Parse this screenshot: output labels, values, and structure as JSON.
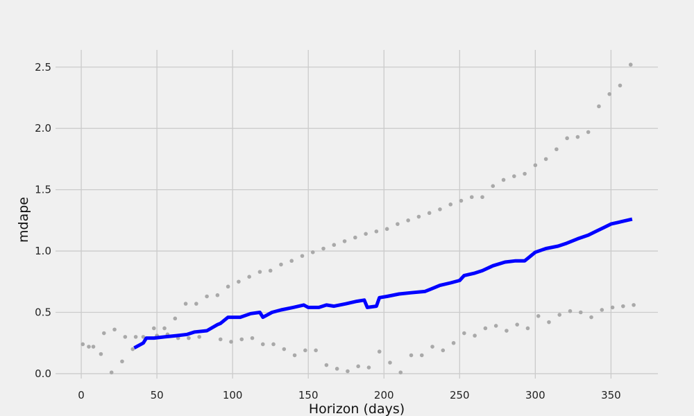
{
  "chart_data": {
    "type": "line",
    "xlabel": "Horizon (days)",
    "ylabel": "mdape",
    "xlim": [
      -17,
      381
    ],
    "ylim": [
      -0.04,
      2.64
    ],
    "x_ticks": [
      0,
      50,
      100,
      150,
      200,
      250,
      300,
      350
    ],
    "y_ticks": [
      0.0,
      0.5,
      1.0,
      1.5,
      2.0,
      2.5
    ],
    "x_tick_labels": [
      "0",
      "50",
      "100",
      "150",
      "200",
      "250",
      "300",
      "350"
    ],
    "y_tick_labels": [
      "0.0",
      "0.5",
      "1.0",
      "1.5",
      "2.0",
      "2.5"
    ],
    "grid": true,
    "colors": {
      "background": "#f0f0f0",
      "grid": "#cbcbcb",
      "line": "#0000ff",
      "points": "#a9a9a9"
    },
    "series": [
      {
        "kind": "line",
        "x": [
          35,
          41,
          43,
          48,
          55,
          63,
          70,
          75,
          83,
          90,
          92,
          97,
          105,
          112,
          118,
          120,
          126,
          132,
          140,
          147,
          150,
          157,
          162,
          167,
          175,
          182,
          187,
          189,
          195,
          197,
          202,
          210,
          218,
          227,
          231,
          237,
          244,
          250,
          253,
          260,
          265,
          272,
          280,
          287,
          293,
          300,
          307,
          315,
          320,
          328,
          335,
          340,
          345,
          350,
          357,
          364
        ],
        "y": [
          0.21,
          0.25,
          0.29,
          0.29,
          0.3,
          0.31,
          0.32,
          0.34,
          0.35,
          0.4,
          0.41,
          0.46,
          0.46,
          0.49,
          0.5,
          0.46,
          0.5,
          0.52,
          0.54,
          0.56,
          0.54,
          0.54,
          0.56,
          0.55,
          0.57,
          0.59,
          0.6,
          0.54,
          0.55,
          0.62,
          0.63,
          0.65,
          0.66,
          0.67,
          0.69,
          0.72,
          0.74,
          0.76,
          0.8,
          0.82,
          0.84,
          0.88,
          0.91,
          0.92,
          0.92,
          0.99,
          1.02,
          1.04,
          1.06,
          1.1,
          1.13,
          1.16,
          1.19,
          1.22,
          1.24,
          1.26
        ]
      },
      {
        "kind": "scatter",
        "x": [
          1,
          5,
          8,
          13,
          15,
          20,
          22,
          27,
          29,
          34,
          36,
          41,
          48,
          50,
          55,
          57,
          62,
          64,
          69,
          71,
          76,
          78,
          83,
          90,
          92,
          97,
          99,
          104,
          106,
          111,
          113,
          118,
          120,
          125,
          127,
          132,
          134,
          139,
          141,
          146,
          148,
          153,
          155,
          160,
          162,
          167,
          169,
          174,
          176,
          181,
          183,
          188,
          190,
          195,
          197,
          202,
          204,
          209,
          211,
          216,
          218,
          223,
          225,
          230,
          232,
          237,
          239,
          244,
          246,
          251,
          253,
          258,
          260,
          265,
          267,
          272,
          274,
          279,
          281,
          286,
          288,
          293,
          295,
          300,
          302,
          307,
          309,
          314,
          316,
          321,
          323,
          328,
          330,
          335,
          337,
          342,
          344,
          349,
          351,
          356,
          358,
          363,
          365
        ],
        "y": [
          0.24,
          0.22,
          0.22,
          0.16,
          0.33,
          0.01,
          0.36,
          0.1,
          0.3,
          0.2,
          0.3,
          0.3,
          0.37,
          0.31,
          0.37,
          0.32,
          0.45,
          0.29,
          0.57,
          0.29,
          0.57,
          0.3,
          0.63,
          0.64,
          0.28,
          0.71,
          0.26,
          0.75,
          0.28,
          0.79,
          0.29,
          0.83,
          0.24,
          0.84,
          0.24,
          0.89,
          0.2,
          0.92,
          0.15,
          0.96,
          0.19,
          0.99,
          0.19,
          1.02,
          0.07,
          1.05,
          0.04,
          1.08,
          0.02,
          1.11,
          0.06,
          1.14,
          0.05,
          1.16,
          0.18,
          1.18,
          0.09,
          1.22,
          0.01,
          1.25,
          0.15,
          1.28,
          0.15,
          1.31,
          0.22,
          1.34,
          0.19,
          1.38,
          0.25,
          1.41,
          0.33,
          1.44,
          0.31,
          1.44,
          0.37,
          1.53,
          0.39,
          1.58,
          0.35,
          1.61,
          0.4,
          1.63,
          0.37,
          1.7,
          0.47,
          1.75,
          0.42,
          1.83,
          0.48,
          1.92,
          0.51,
          1.93,
          0.5,
          1.97,
          0.46,
          2.18,
          0.52,
          2.28,
          0.54,
          2.35,
          0.55,
          2.52,
          0.56
        ]
      }
    ]
  }
}
